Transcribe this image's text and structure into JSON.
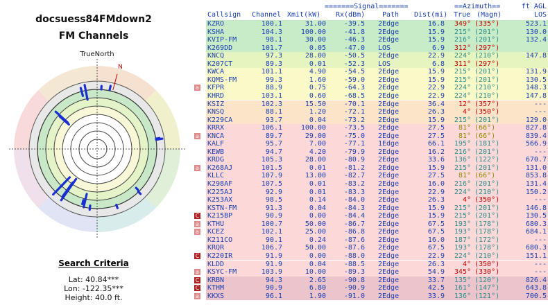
{
  "title": "docsuess84FMdown2",
  "subtitle": "FM Channels",
  "polar": {
    "label_top": "TrueNorth",
    "label_n": "N"
  },
  "criteria": {
    "heading": "Search Criteria",
    "lat": "Lat: 40.84***",
    "lon": "Lon: -122.35***",
    "height": "Height: 40.0 ft."
  },
  "headers": {
    "signal_group": "=======Signal=======",
    "azimuth_group": "==Azimuth==",
    "ft_agl": "ft AGL",
    "callsign": "Callsign",
    "channel": "Channel",
    "xmit": "Xmit(kW)",
    "rx": "Rx(dBm)",
    "path": "Path",
    "dist": "Dist(mi)",
    "true": "True",
    "magn": "(Magn)",
    "los": "LOS"
  },
  "rows": [
    {
      "tag": "",
      "call": "KZRO",
      "ch": "100.1",
      "xmit": "31.00",
      "rx": "-39.5",
      "path": "2Edge",
      "dist": "16.8",
      "tr": "349°",
      "mg": "(335°)",
      "los": "523.1",
      "bg": "#c8ecc8",
      "az": "red"
    },
    {
      "tag": "",
      "call": "KSHA",
      "ch": "104.3",
      "xmit": "100.00",
      "rx": "-41.8",
      "path": "2Edge",
      "dist": "15.9",
      "tr": "215°",
      "mg": "(201°)",
      "los": "130.0",
      "bg": "#c8ecc8",
      "az": "teal"
    },
    {
      "tag": "",
      "call": "KVIP-FM",
      "ch": "98.1",
      "xmit": "30.00",
      "rx": "-46.3",
      "path": "2Edge",
      "dist": "15.9",
      "tr": "216°",
      "mg": "(201°)",
      "los": "132.4",
      "bg": "#c8ecc8",
      "az": "teal"
    },
    {
      "tag": "",
      "call": "K269DD",
      "ch": "101.7",
      "xmit": "0.05",
      "rx": "-47.0",
      "path": "LOS",
      "dist": "6.9",
      "tr": "312°",
      "mg": "(297°)",
      "los": "",
      "bg": "#c8ecc8",
      "az": "red"
    },
    {
      "tag": "",
      "call": "KNCQ",
      "ch": "97.3",
      "xmit": "28.00",
      "rx": "-50.5",
      "path": "2Edge",
      "dist": "22.9",
      "tr": "224°",
      "mg": "(210°)",
      "los": "147.8",
      "bg": "#e6f4c0",
      "az": "teal"
    },
    {
      "tag": "",
      "call": "K207CT",
      "ch": "89.3",
      "xmit": "0.01",
      "rx": "-52.3",
      "path": "LOS",
      "dist": "6.8",
      "tr": "311°",
      "mg": "(297°)",
      "los": "",
      "bg": "#e6f4c0",
      "az": "red"
    },
    {
      "tag": "",
      "call": "KWCA",
      "ch": "101.1",
      "xmit": "4.90",
      "rx": "-54.5",
      "path": "2Edge",
      "dist": "15.9",
      "tr": "215°",
      "mg": "(201°)",
      "los": "131.9",
      "bg": "#fafac8",
      "az": "teal"
    },
    {
      "tag": "",
      "call": "KQMS-FM",
      "ch": "99.3",
      "xmit": "1.60",
      "rx": "-59.0",
      "path": "2Edge",
      "dist": "15.9",
      "tr": "215°",
      "mg": "(201°)",
      "los": "130.5",
      "bg": "#fafac8",
      "az": "teal"
    },
    {
      "tag": "a",
      "call": "KFPR",
      "ch": "88.9",
      "xmit": "0.75",
      "rx": "-64.3",
      "path": "2Edge",
      "dist": "22.9",
      "tr": "224°",
      "mg": "(210°)",
      "los": "148.3",
      "bg": "#fafac8",
      "az": "teal"
    },
    {
      "tag": "",
      "call": "KHRD",
      "ch": "103.1",
      "xmit": "0.60",
      "rx": "-68.5",
      "path": "2Edge",
      "dist": "22.9",
      "tr": "224°",
      "mg": "(210°)",
      "los": "147.8",
      "bg": "#fafac8",
      "az": "teal"
    },
    {
      "tag": "",
      "call": "KSIZ",
      "ch": "102.3",
      "xmit": "15.50",
      "rx": "-70.1",
      "path": "2Edge",
      "dist": "36.4",
      "tr": "12°",
      "mg": "(357°)",
      "los": "---",
      "bg": "#fce4c8",
      "az": "red"
    },
    {
      "tag": "",
      "call": "KNSQ",
      "ch": "88.1",
      "xmit": "1.20",
      "rx": "-72.1",
      "path": "2Edge",
      "dist": "26.3",
      "tr": "4°",
      "mg": "(350°)",
      "los": "---",
      "bg": "#fce4c8",
      "az": "red"
    },
    {
      "tag": "",
      "call": "K229CA",
      "ch": "93.7",
      "xmit": "0.04",
      "rx": "-73.2",
      "path": "2Edge",
      "dist": "15.9",
      "tr": "215°",
      "mg": "(201°)",
      "los": "129.0",
      "bg": "#fce4c8",
      "az": "teal"
    },
    {
      "tag": "",
      "call": "KRRX",
      "ch": "106.1",
      "xmit": "100.00",
      "rx": "-73.5",
      "path": "2Edge",
      "dist": "27.5",
      "tr": "81°",
      "mg": "(66°)",
      "los": "827.8",
      "bg": "#fcd8d8",
      "az": "olive"
    },
    {
      "tag": "a",
      "call": "KNCA",
      "ch": "89.7",
      "xmit": "29.00",
      "rx": "-75.0",
      "path": "2Edge",
      "dist": "27.5",
      "tr": "81°",
      "mg": "(66°)",
      "los": "839.4",
      "bg": "#fcd8d8",
      "az": "olive"
    },
    {
      "tag": "",
      "call": "KALF",
      "ch": "95.7",
      "xmit": "7.00",
      "rx": "-77.1",
      "path": "1Edge",
      "dist": "66.1",
      "tr": "195°",
      "mg": "(181°)",
      "los": "566.9",
      "bg": "#fcd8d8",
      "az": "teal"
    },
    {
      "tag": "",
      "call": "KEWB",
      "ch": "94.7",
      "xmit": "4.20",
      "rx": "-79.9",
      "path": "2Edge",
      "dist": "16.2",
      "tr": "216°",
      "mg": "(201°)",
      "los": "---",
      "bg": "#fcd8d8",
      "az": "teal"
    },
    {
      "tag": "",
      "call": "KRDG",
      "ch": "105.3",
      "xmit": "28.00",
      "rx": "-80.9",
      "path": "2Edge",
      "dist": "33.6",
      "tr": "136°",
      "mg": "(122°)",
      "los": "670.7",
      "bg": "#fcd8d8",
      "az": "teal"
    },
    {
      "tag": "a",
      "call": "K268AJ",
      "ch": "101.5",
      "xmit": "0.01",
      "rx": "-81.2",
      "path": "2Edge",
      "dist": "15.9",
      "tr": "215°",
      "mg": "(201°)",
      "los": "131.0",
      "bg": "#fcd8d8",
      "az": "teal"
    },
    {
      "tag": "",
      "call": "KLLC",
      "ch": "107.9",
      "xmit": "13.00",
      "rx": "-82.7",
      "path": "2Edge",
      "dist": "27.5",
      "tr": "81°",
      "mg": "(66°)",
      "los": "853.8",
      "bg": "#fcd8d8",
      "az": "olive"
    },
    {
      "tag": "",
      "call": "K298AF",
      "ch": "107.5",
      "xmit": "0.01",
      "rx": "-83.2",
      "path": "2Edge",
      "dist": "16.0",
      "tr": "216°",
      "mg": "(201°)",
      "los": "131.4",
      "bg": "#fcd8d8",
      "az": "teal"
    },
    {
      "tag": "",
      "call": "K225AJ",
      "ch": "92.9",
      "xmit": "0.01",
      "rx": "-83.3",
      "path": "2Edge",
      "dist": "22.9",
      "tr": "224°",
      "mg": "(210°)",
      "los": "150.2",
      "bg": "#fcd8d8",
      "az": "teal"
    },
    {
      "tag": "",
      "call": "K253AX",
      "ch": "98.5",
      "xmit": "0.14",
      "rx": "-84.0",
      "path": "2Edge",
      "dist": "26.3",
      "tr": "4°",
      "mg": "(350°)",
      "los": "---",
      "bg": "#fcd8d8",
      "az": "red"
    },
    {
      "tag": "",
      "call": "KSTN-FM",
      "ch": "91.3",
      "xmit": "0.04",
      "rx": "-84.3",
      "path": "2Edge",
      "dist": "15.9",
      "tr": "215°",
      "mg": "(201°)",
      "los": "146.8",
      "bg": "#fcd8d8",
      "az": "teal"
    },
    {
      "tag": "C",
      "call": "K215BP",
      "ch": "90.9",
      "xmit": "0.00",
      "rx": "-84.4",
      "path": "2Edge",
      "dist": "15.9",
      "tr": "215°",
      "mg": "(201°)",
      "los": "130.5",
      "bg": "#fcd8d8",
      "az": "teal"
    },
    {
      "tag": "a",
      "call": "KTHU",
      "ch": "100.7",
      "xmit": "50.00",
      "rx": "-86.7",
      "path": "2Edge",
      "dist": "67.5",
      "tr": "193°",
      "mg": "(178°)",
      "los": "680.3",
      "bg": "#fcd8d8",
      "az": "teal"
    },
    {
      "tag": "a",
      "call": "KCEZ",
      "ch": "102.1",
      "xmit": "25.00",
      "rx": "-86.8",
      "path": "2Edge",
      "dist": "67.5",
      "tr": "193°",
      "mg": "(178°)",
      "los": "684.1",
      "bg": "#fcd8d8",
      "az": "teal"
    },
    {
      "tag": "",
      "call": "K211CO",
      "ch": "90.1",
      "xmit": "0.24",
      "rx": "-87.6",
      "path": "2Edge",
      "dist": "16.0",
      "tr": "187°",
      "mg": "(172°)",
      "los": "---",
      "bg": "#fcd8d8",
      "az": "teal"
    },
    {
      "tag": "",
      "call": "KRQR",
      "ch": "106.7",
      "xmit": "50.00",
      "rx": "-87.6",
      "path": "2Edge",
      "dist": "67.5",
      "tr": "193°",
      "mg": "(178°)",
      "los": "680.3",
      "bg": "#fcd8d8",
      "az": "teal"
    },
    {
      "tag": "C",
      "call": "K220IR",
      "ch": "91.9",
      "xmit": "0.00",
      "rx": "-88.0",
      "path": "2Edge",
      "dist": "22.9",
      "tr": "224°",
      "mg": "(210°)",
      "los": "151.1",
      "bg": "#fcd8d8",
      "az": "teal"
    },
    {
      "tag": "",
      "call": "KLDD",
      "ch": "91.9",
      "xmit": "0.04",
      "rx": "-88.5",
      "path": "2Edge",
      "dist": "26.3",
      "tr": "4°",
      "mg": "(350°)",
      "los": "---",
      "bg": "#fcd8d8",
      "az": "red"
    },
    {
      "tag": "a",
      "call": "KSYC-FM",
      "ch": "103.9",
      "xmit": "10.00",
      "rx": "-89.3",
      "path": "2Edge",
      "dist": "54.9",
      "tr": "345°",
      "mg": "(330°)",
      "los": "---",
      "bg": "#fcd8d8",
      "az": "red"
    },
    {
      "tag": "C",
      "call": "KRBN",
      "ch": "94.3",
      "xmit": "2.65",
      "rx": "-90.8",
      "path": "2Edge",
      "dist": "33.7",
      "tr": "135°",
      "mg": "(120°)",
      "los": "826.4",
      "bg": "#ecc4cc",
      "az": "teal"
    },
    {
      "tag": "C",
      "call": "KTHM",
      "ch": "90.9",
      "xmit": "6.80",
      "rx": "-90.9",
      "path": "2Edge",
      "dist": "42.5",
      "tr": "161°",
      "mg": "(147°)",
      "los": "643.8",
      "bg": "#ecc4cc",
      "az": "teal"
    },
    {
      "tag": "a",
      "call": "KKXS",
      "ch": "96.1",
      "xmit": "1.90",
      "rx": "-91.0",
      "path": "2Edge",
      "dist": "33.9",
      "tr": "136°",
      "mg": "(121°)",
      "los": "700.5",
      "bg": "#ecc4cc",
      "az": "teal"
    }
  ],
  "polar_rays": [
    {
      "az": 349,
      "tip": 0.96,
      "len": 0.22
    },
    {
      "az": 345,
      "tip": 0.93,
      "len": 0.12
    },
    {
      "az": 12,
      "tip": 0.95,
      "len": 0.06
    },
    {
      "az": 4,
      "tip": 0.93,
      "len": 0.05
    },
    {
      "az": 81,
      "tip": 0.97,
      "len": 0.09
    },
    {
      "az": 80,
      "tip": 0.93,
      "len": 0.05
    },
    {
      "az": 136,
      "tip": 0.92,
      "len": 0.05
    },
    {
      "az": 135,
      "tip": 0.85,
      "len": 0.04
    },
    {
      "az": 161,
      "tip": 0.92,
      "len": 0.05
    },
    {
      "az": 193,
      "tip": 0.88,
      "len": 0.2
    },
    {
      "az": 195,
      "tip": 0.84,
      "len": 0.06
    },
    {
      "az": 215,
      "tip": 0.92,
      "len": 0.38
    },
    {
      "az": 216,
      "tip": 0.86,
      "len": 0.25
    },
    {
      "az": 224,
      "tip": 0.93,
      "len": 0.35
    },
    {
      "az": 224,
      "tip": 0.78,
      "len": 0.1
    },
    {
      "az": 187,
      "tip": 0.9,
      "len": 0.06
    },
    {
      "az": 312,
      "tip": 0.82,
      "len": 0.24
    },
    {
      "az": 311,
      "tip": 0.73,
      "len": 0.18
    }
  ]
}
